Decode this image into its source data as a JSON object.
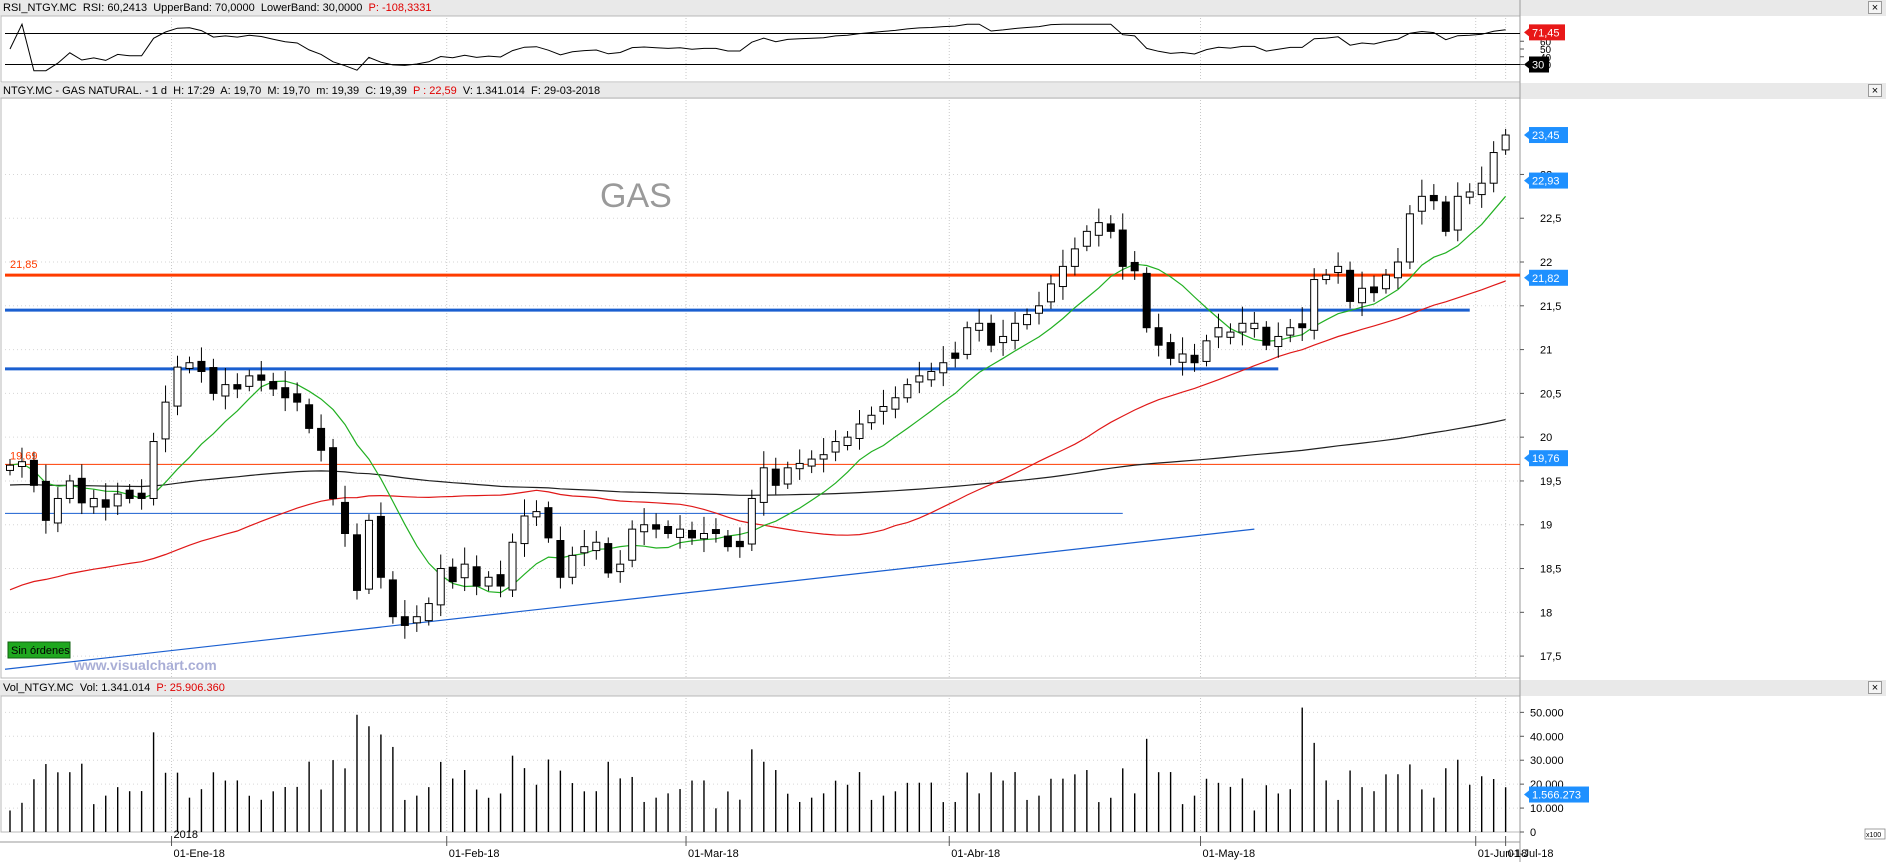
{
  "chart_data": {
    "type": "candlestick",
    "title": "GAS",
    "start_date": "2017-12-12",
    "price_axis": {
      "ticks": [
        17.5,
        18,
        18.5,
        19,
        19.5,
        20,
        20.5,
        21,
        21.5,
        22,
        22.5,
        23
      ],
      "min": 17.25,
      "max": 23.85
    },
    "volume_axis": {
      "ticks": [
        0,
        10000,
        20000,
        30000,
        40000,
        50000
      ],
      "tick_labels": [
        "0",
        "10.000",
        "20.000",
        "30.000",
        "40.000",
        "50.000"
      ],
      "unit_label": "x100"
    },
    "rsi_axis": {
      "ticks": [
        30,
        40,
        50,
        60
      ],
      "levels": [
        30,
        70
      ]
    },
    "date_labels": [
      {
        "date": "2018-01-01",
        "label": "01-Ene-18"
      },
      {
        "date": "2018-02-01",
        "label": "01-Feb-18"
      },
      {
        "date": "2018-03-01",
        "label": "01-Mar-18"
      },
      {
        "date": "2018-04-01",
        "label": "01-Abr-18"
      },
      {
        "date": "2018-05-01",
        "label": "01-May-18"
      },
      {
        "date": "2018-06-01",
        "label": "01-Jun-18"
      },
      {
        "date": "2018-07-01",
        "label": "01-Jul-18"
      }
    ],
    "year_label": {
      "date": "2018-01-01",
      "label": "2018"
    },
    "closes": [
      19.68,
      19.72,
      19.45,
      19.05,
      19.3,
      19.5,
      19.25,
      19.3,
      19.2,
      19.35,
      19.3,
      19.3,
      19.95,
      20.4,
      20.8,
      20.85,
      20.75,
      20.5,
      20.6,
      20.55,
      20.7,
      20.65,
      20.55,
      20.45,
      20.4,
      20.1,
      19.85,
      19.3,
      18.9,
      18.25,
      19.05,
      18.4,
      17.95,
      17.85,
      17.95,
      18.1,
      18.5,
      18.35,
      18.55,
      18.3,
      18.4,
      18.3,
      18.8,
      19.1,
      19.15,
      18.85,
      18.4,
      18.65,
      18.75,
      18.8,
      18.45,
      18.55,
      18.95,
      19.0,
      18.95,
      18.9,
      18.95,
      18.85,
      18.9,
      18.9,
      18.75,
      18.75,
      19.3,
      19.65,
      19.45,
      19.65,
      19.7,
      19.75,
      19.8,
      19.95,
      20.0,
      20.15,
      20.25,
      20.35,
      20.45,
      20.6,
      20.7,
      20.75,
      20.85,
      20.9,
      21.25,
      21.3,
      21.05,
      21.15,
      21.3,
      21.4,
      21.5,
      21.75,
      21.95,
      22.15,
      22.35,
      22.45,
      22.35,
      21.95,
      21.9,
      21.25,
      21.05,
      20.9,
      20.95,
      20.85,
      21.1,
      21.25,
      21.2,
      21.3,
      21.3,
      21.05,
      21.15,
      21.25,
      21.25,
      21.8,
      21.85,
      21.95,
      21.55,
      21.7,
      21.65,
      21.85,
      22.0,
      22.55,
      22.75,
      22.7,
      22.35,
      22.75,
      22.8,
      22.9,
      23.25,
      23.45
    ]
  },
  "rsi_header": {
    "name": "RSI_NTGY.MC",
    "rsi": "RSI: 60,2413",
    "upper": "UpperBand: 70,0000",
    "lower": "LowerBand: 30,0000",
    "p": "P: -108,3331"
  },
  "price_header": {
    "ticker": "NTGY.MC - GAS NATURAL. - 1 d",
    "h": "H: 17:29",
    "a": "A: 19,70",
    "m": "M: 19,70",
    "mm": "m: 19,39",
    "c": "C: 19,39",
    "p": "P : 22,59",
    "v": "V: 1.341.014",
    "f": "F: 29-03-2018"
  },
  "vol_header": {
    "name": "Vol_NTGY.MC",
    "vol": "Vol: 1.341.014",
    "p": "P: 25.906.360"
  },
  "annotations": {
    "level_1": {
      "value": 21.85,
      "label": "21,85"
    },
    "level_2": {
      "value": 19.69,
      "label": "19,69"
    },
    "no_orders": "Sin órdenes",
    "watermark": "www.visualchart.com"
  },
  "axis_badges": {
    "rsi_top": "71,45",
    "rsi_bottom": "30",
    "price_last": "23,45",
    "ma_short": "22,93",
    "ma_mid": "21,82",
    "ma_long": "19,76",
    "vol_last": "1.566.273"
  },
  "colors": {
    "bull": "#ffffff",
    "bear": "#000000",
    "ma_short": "#22b022",
    "ma_mid": "#e01818",
    "ma_long": "#202020",
    "resistance": "#ff3c00",
    "support": "#1a5fd0",
    "badge": "#1e90ff"
  }
}
